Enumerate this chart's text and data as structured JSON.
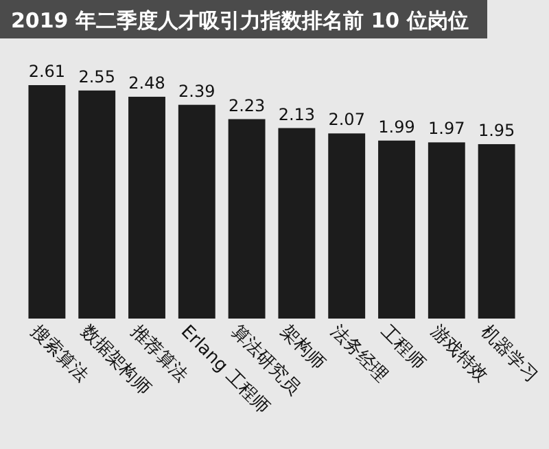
{
  "chart_data": {
    "type": "bar",
    "title": "2019 年二季度人才吸引力指数排名前 10 位岗位",
    "categories": [
      "搜索算法",
      "数据架构师",
      "推荐算法",
      "Erlang 工程师",
      "算法研究员",
      "架构师",
      "法务经理",
      "工程师",
      "游戏特效",
      "机器学习"
    ],
    "values": [
      2.61,
      2.55,
      2.48,
      2.39,
      2.23,
      2.13,
      2.07,
      1.99,
      1.97,
      1.95
    ],
    "color": "#1c1c1c",
    "data_labels": true
  }
}
